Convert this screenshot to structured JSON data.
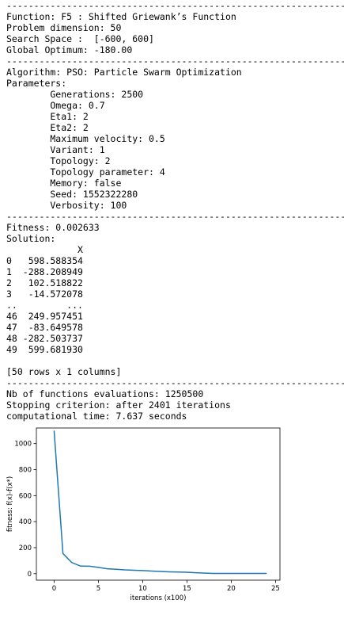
{
  "lines": [
    "--------------------------------------------------------------",
    "Function: F5 : Shifted Griewank’s Function",
    "Problem dimension: 50",
    "Search Space :  [-600, 600]",
    "Global Optimum: -180.00",
    "--------------------------------------------------------------",
    "Algorithm: PSO: Particle Swarm Optimization",
    "Parameters:",
    "        Generations: 2500",
    "        Omega: 0.7",
    "        Eta1: 2",
    "        Eta2: 2",
    "        Maximum velocity: 0.5",
    "        Variant: 1",
    "        Topology: 2",
    "        Topology parameter: 4",
    "        Memory: false",
    "        Seed: 1552322280",
    "        Verbosity: 100",
    "--------------------------------------------------------------",
    "Fitness: 0.002633",
    "Solution:",
    "             X",
    "0   598.588354",
    "1  -288.208949",
    "2   102.518822",
    "3   -14.572078",
    "..         ...",
    "46  249.957451",
    "47  -83.649578",
    "48 -282.503737",
    "49  599.681930",
    "",
    "[50 rows x 1 columns]",
    "--------------------------------------------------------------",
    "Nb of functions evaluations: 1250500",
    "Stopping criterion: after 2401 iterations",
    "computational time: 7.637 seconds"
  ],
  "chart_data": {
    "type": "line",
    "xlabel": "iterations (x100)",
    "ylabel": "fitness: f(x)-f(x*)",
    "xlim": [
      -2,
      25.5
    ],
    "ylim": [
      -50,
      1120
    ],
    "xticks": [
      0,
      5,
      10,
      15,
      20,
      25
    ],
    "yticks": [
      0,
      200,
      400,
      600,
      800,
      1000
    ],
    "line_color": "#1f77b4",
    "x": [
      0,
      1,
      2,
      3,
      4,
      5,
      6,
      7,
      8,
      9,
      10,
      11,
      12,
      13,
      14,
      15,
      16,
      17,
      18,
      19,
      20,
      21,
      22,
      23,
      24
    ],
    "values": [
      1100,
      155,
      85,
      58,
      57,
      48,
      38,
      34,
      29,
      26,
      24,
      20,
      17,
      14,
      12,
      11,
      7,
      4,
      2,
      2,
      1.5,
      1.5,
      1.5,
      1.5,
      1.5
    ]
  }
}
